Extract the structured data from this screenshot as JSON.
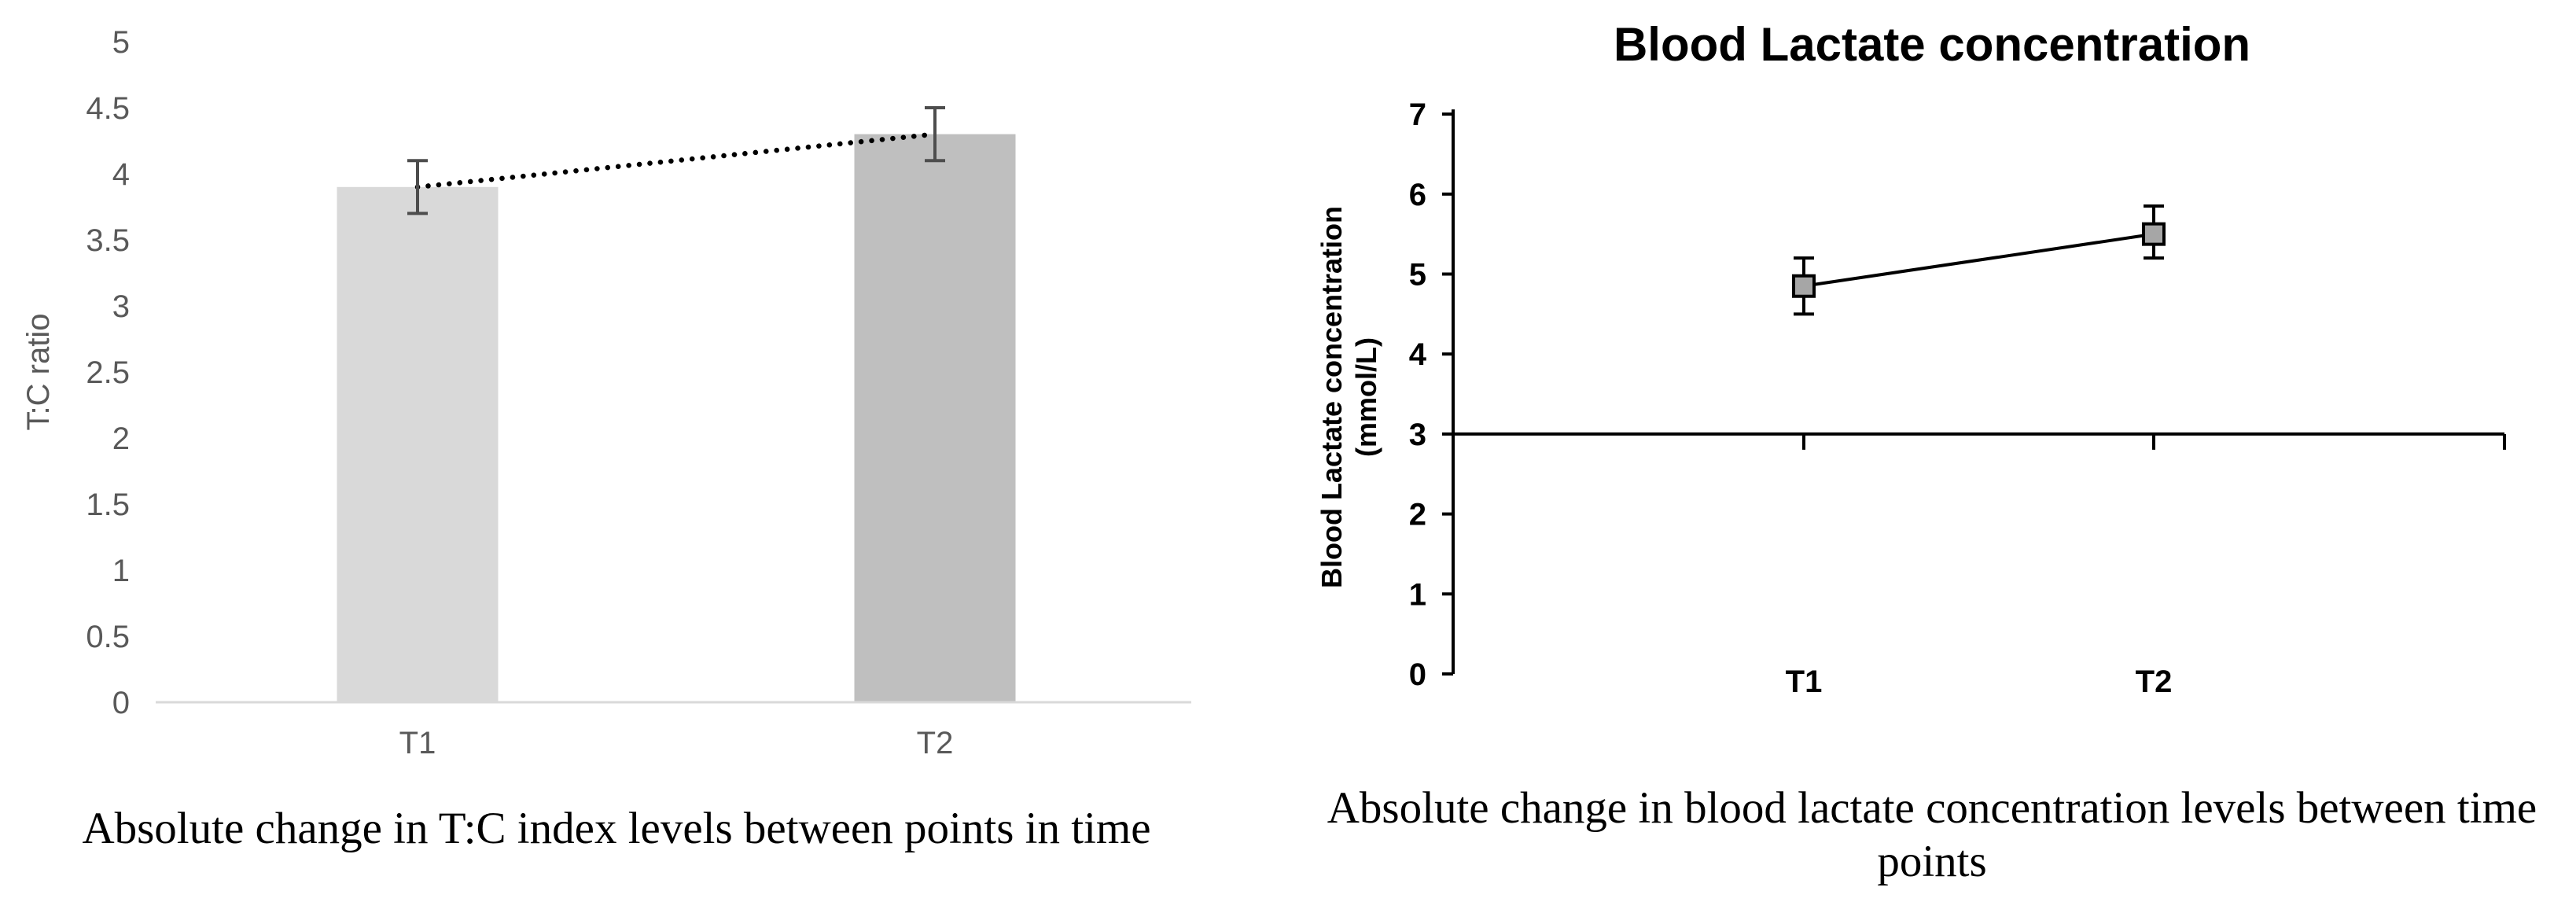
{
  "chart_data": [
    {
      "type": "bar",
      "title": "",
      "caption": "Absolute change in T:C index levels between points in time",
      "ylabel": "T:C ratio",
      "xlabel": "",
      "categories": [
        "T1",
        "T2"
      ],
      "values": [
        3.9,
        4.3
      ],
      "error_low": [
        3.7,
        4.1
      ],
      "error_high": [
        4.1,
        4.5
      ],
      "trendline": {
        "style": "dotted",
        "from": 3.9,
        "to": 4.3
      },
      "ylim": [
        0,
        5
      ],
      "ytick_step": 0.5,
      "ytick_labels": [
        "0",
        "0.5",
        "1",
        "1.5",
        "2",
        "2.5",
        "3",
        "3.5",
        "4",
        "4.5",
        "5"
      ],
      "grid": false,
      "legend": "none",
      "colors": {
        "bar_t1": "#d9d9d9",
        "bar_t2": "#bfbfbf",
        "error_bar": "#4d4d4d",
        "trend_dots": "#000000",
        "axis_line": "#d9d9d9",
        "labels": "#595959"
      }
    },
    {
      "type": "line",
      "title": "Blood Lactate concentration",
      "caption": "Absolute change in blood lactate concentration levels between time points",
      "ylabel_lines": [
        "Blood Lactate concentration",
        "(mmol/L)"
      ],
      "xlabel": "",
      "categories": [
        "T1",
        "T2"
      ],
      "values": [
        4.85,
        5.5
      ],
      "error_low": [
        4.5,
        5.2
      ],
      "error_high": [
        5.2,
        5.85
      ],
      "ylim": [
        0,
        7
      ],
      "ytick_step": 1,
      "ytick_labels": [
        "0",
        "1",
        "2",
        "3",
        "4",
        "5",
        "6",
        "7"
      ],
      "x_axis_crosses_at": 3,
      "marker": "square",
      "grid": false,
      "legend": "none",
      "colors": {
        "marker_fill": "#a6a6a6",
        "marker_border": "#000000",
        "series_line": "#000000",
        "error_bar": "#000000",
        "axis_line": "#000000",
        "labels": "#000000"
      }
    }
  ]
}
